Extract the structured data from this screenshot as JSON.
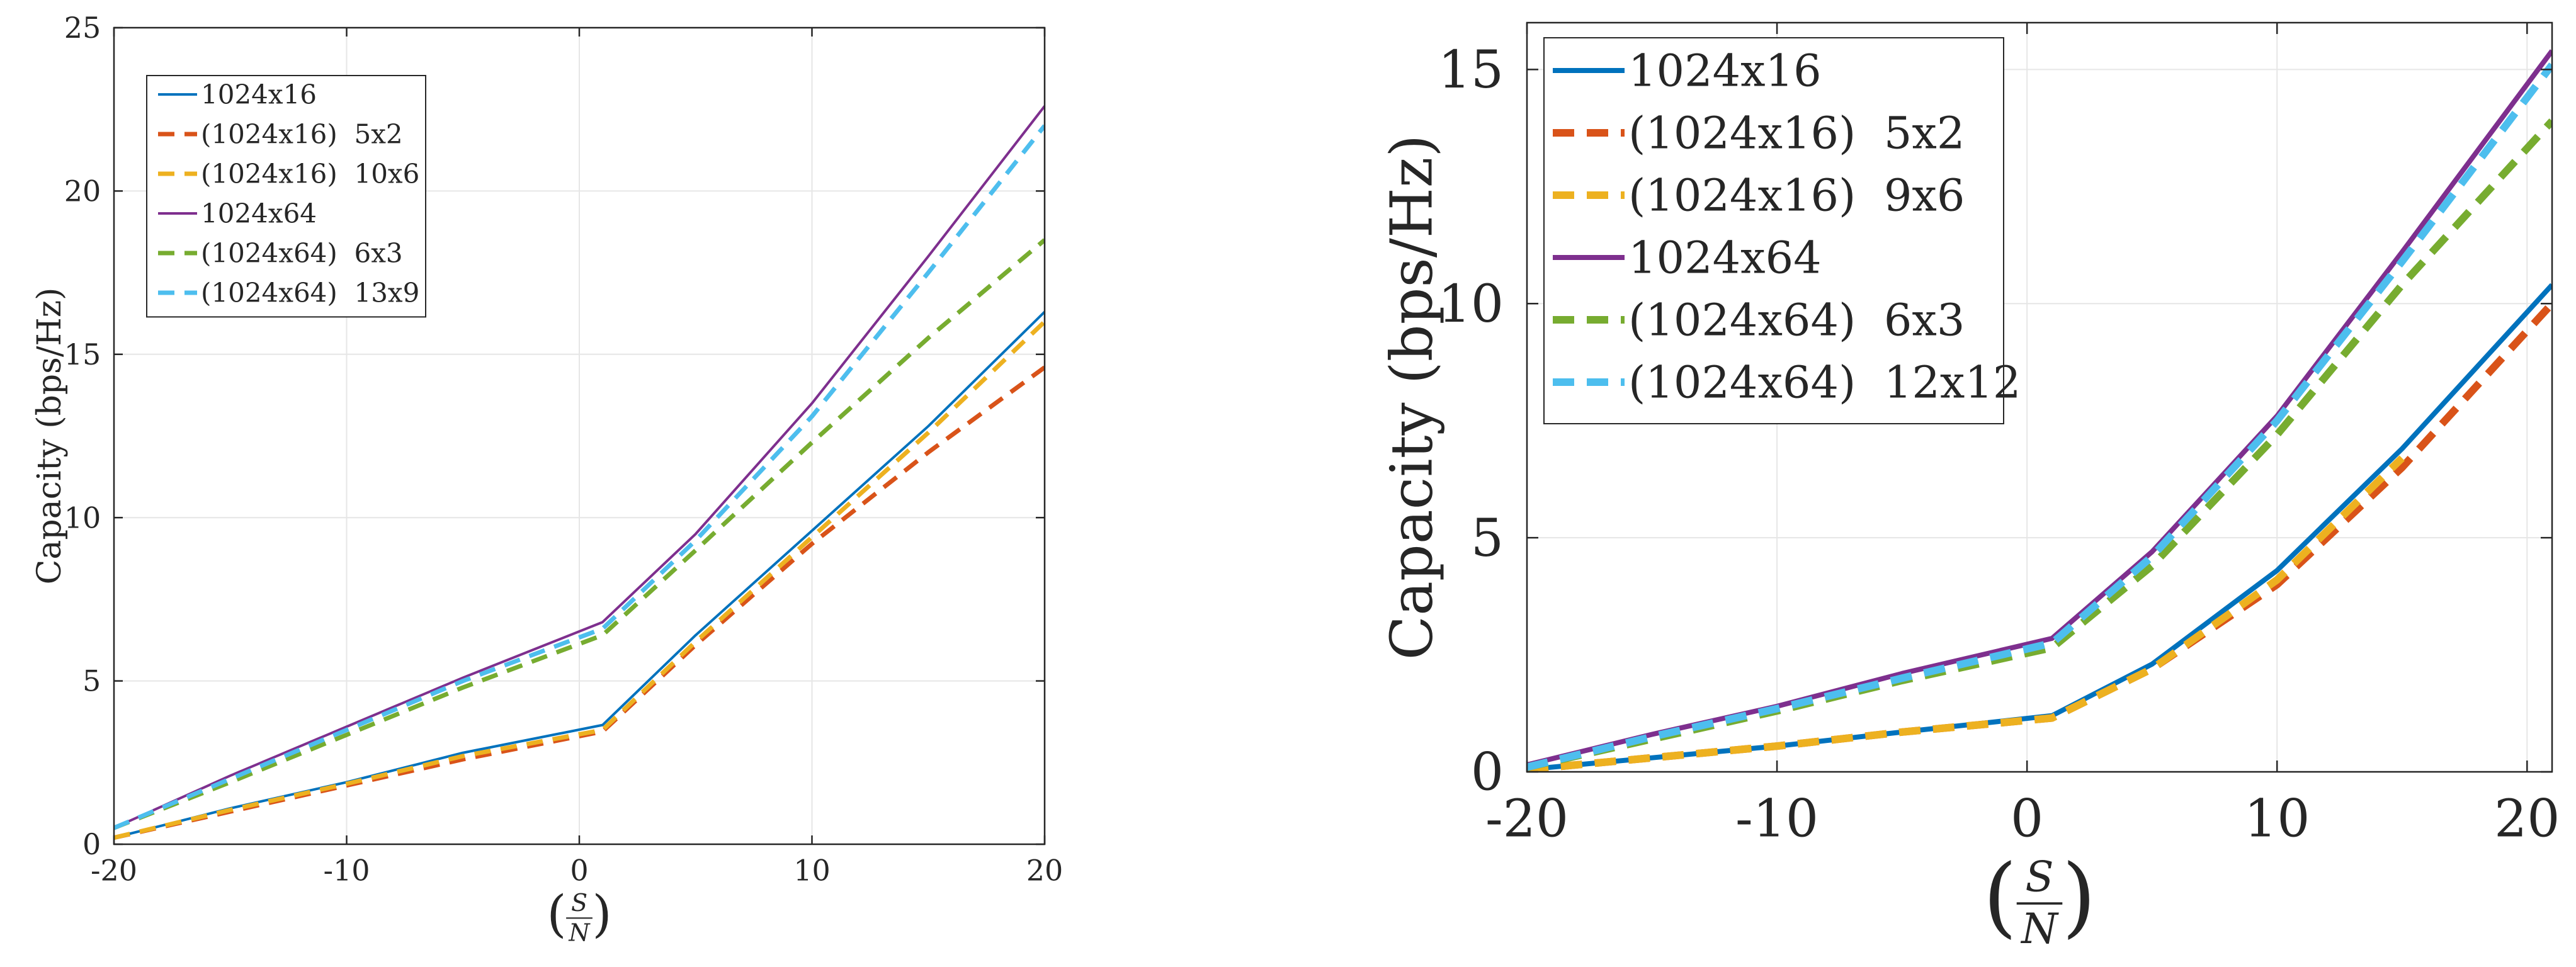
{
  "chart_data": [
    {
      "type": "line",
      "xlabel_numerator": "S",
      "xlabel_denominator": "N",
      "ylabel": "Capacity (bps/Hz)",
      "xlim": [
        -20,
        20
      ],
      "ylim": [
        0,
        25
      ],
      "xticks": [
        -20,
        -10,
        0,
        10,
        20
      ],
      "yticks": [
        0,
        5,
        10,
        15,
        20,
        25
      ],
      "grid": true,
      "legend_position": "top-left",
      "series": [
        {
          "name": "1024x16",
          "color": "#0072BD",
          "dashed": false,
          "x": [
            -20,
            -15,
            -10,
            -5,
            1,
            5,
            10,
            15,
            20
          ],
          "y": [
            0.2,
            1.1,
            1.9,
            2.8,
            3.65,
            6.4,
            9.6,
            12.8,
            16.3
          ]
        },
        {
          "name": "(1024x16)  5x2",
          "color": "#D95319",
          "dashed": true,
          "x": [
            -20,
            -15,
            -10,
            -5,
            1,
            5,
            10,
            15,
            20
          ],
          "y": [
            0.2,
            1.0,
            1.8,
            2.6,
            3.45,
            6.1,
            9.2,
            12.0,
            14.6
          ]
        },
        {
          "name": "(1024x16)  10x6",
          "color": "#EDB120",
          "dashed": true,
          "x": [
            -20,
            -15,
            -10,
            -5,
            1,
            5,
            10,
            15,
            20
          ],
          "y": [
            0.2,
            1.05,
            1.85,
            2.7,
            3.5,
            6.2,
            9.4,
            12.6,
            16.0
          ]
        },
        {
          "name": "1024x64",
          "color": "#7E2F8E",
          "dashed": false,
          "x": [
            -20,
            -15,
            -10,
            -5,
            1,
            5,
            10,
            15,
            20
          ],
          "y": [
            0.5,
            2.1,
            3.6,
            5.1,
            6.8,
            9.5,
            13.5,
            18.0,
            22.6
          ]
        },
        {
          "name": "(1024x64)  6x3",
          "color": "#77AC30",
          "dashed": true,
          "x": [
            -20,
            -15,
            -10,
            -5,
            1,
            5,
            10,
            15,
            20
          ],
          "y": [
            0.5,
            1.9,
            3.35,
            4.8,
            6.4,
            9.0,
            12.3,
            15.5,
            18.5
          ]
        },
        {
          "name": "(1024x64)  13x9",
          "color": "#4DBEEE",
          "dashed": true,
          "x": [
            -20,
            -15,
            -10,
            -5,
            1,
            5,
            10,
            15,
            20
          ],
          "y": [
            0.5,
            2.0,
            3.5,
            5.0,
            6.6,
            9.3,
            13.1,
            17.5,
            22.0
          ]
        }
      ]
    },
    {
      "type": "line",
      "xlabel_numerator": "S",
      "xlabel_denominator": "N",
      "ylabel": "Capacity (bps/Hz)",
      "xlim": [
        -20,
        21
      ],
      "ylim": [
        0,
        16
      ],
      "xticks": [
        -20,
        -10,
        0,
        10,
        20
      ],
      "yticks": [
        0,
        5,
        10,
        15
      ],
      "grid": true,
      "legend_position": "top-left",
      "series": [
        {
          "name": "1024x16",
          "color": "#0072BD",
          "dashed": false,
          "x": [
            -20,
            -15,
            -10,
            -5,
            1,
            5,
            10,
            15,
            21
          ],
          "y": [
            0.05,
            0.3,
            0.55,
            0.85,
            1.2,
            2.3,
            4.3,
            6.9,
            10.4
          ]
        },
        {
          "name": "(1024x16)  5x2",
          "color": "#D95319",
          "dashed": true,
          "x": [
            -20,
            -15,
            -10,
            -5,
            1,
            5,
            10,
            15,
            21
          ],
          "y": [
            0.05,
            0.3,
            0.55,
            0.85,
            1.15,
            2.2,
            4.0,
            6.5,
            10.0
          ]
        },
        {
          "name": "(1024x16)  9x6",
          "color": "#EDB120",
          "dashed": true,
          "x": [
            -20,
            -15,
            -10,
            -5,
            1,
            5,
            10,
            15
          ],
          "y": [
            0.05,
            0.3,
            0.55,
            0.85,
            1.15,
            2.2,
            4.1,
            6.7
          ]
        },
        {
          "name": "1024x64",
          "color": "#7E2F8E",
          "dashed": false,
          "x": [
            -20,
            -15,
            -10,
            -5,
            1,
            5,
            10,
            15,
            21
          ],
          "y": [
            0.15,
            0.8,
            1.4,
            2.1,
            2.85,
            4.7,
            7.6,
            11.1,
            15.4
          ]
        },
        {
          "name": "(1024x64)  6x3",
          "color": "#77AC30",
          "dashed": true,
          "x": [
            -20,
            -15,
            -10,
            -5,
            1,
            5,
            10,
            15,
            21
          ],
          "y": [
            0.1,
            0.7,
            1.3,
            1.95,
            2.65,
            4.4,
            7.2,
            10.4,
            13.9
          ]
        },
        {
          "name": "(1024x64)  12x12",
          "color": "#4DBEEE",
          "dashed": true,
          "x": [
            -20,
            -15,
            -10,
            -5,
            1,
            5,
            10,
            15,
            21
          ],
          "y": [
            0.1,
            0.75,
            1.35,
            2.0,
            2.75,
            4.6,
            7.5,
            10.9,
            15.1
          ]
        }
      ]
    }
  ]
}
